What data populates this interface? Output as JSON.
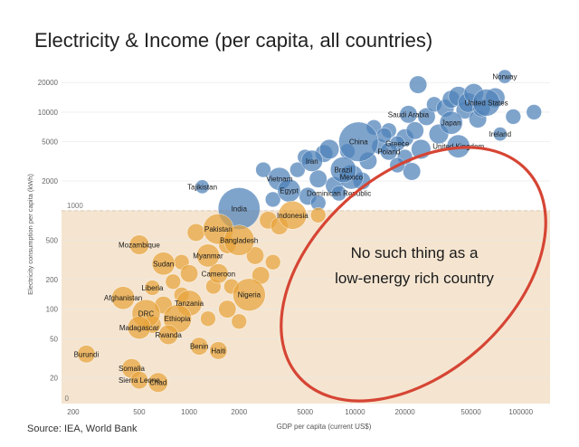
{
  "title": "Electricity & Income (per capita, all countries)",
  "source": "Source: IEA, World Bank",
  "chart_data": {
    "type": "scatter",
    "title": "Electricity & Income (per capita, all countries)",
    "xlabel": "GDP per capita (current US$)",
    "ylabel": "Electricity consumption per capita (kWh)",
    "xscale": "log",
    "yscale": "log",
    "xlim": [
      170,
      150000
    ],
    "ylim": [
      11,
      30000
    ],
    "xticks": [
      200,
      500,
      1000,
      2000,
      5000,
      10000,
      20000,
      50000,
      100000
    ],
    "xtick_labels": [
      "200",
      "500",
      "1000",
      "2000",
      "5000",
      "10000",
      "20000",
      "50000",
      "100000"
    ],
    "yticks": [
      20,
      50,
      100,
      200,
      500,
      1000,
      2000,
      5000,
      10000,
      20000
    ],
    "ytick_labels": [
      "20",
      "50",
      "100",
      "200",
      "500",
      "1000",
      "2000",
      "5000",
      "10000",
      "20000"
    ],
    "zero_label": "0",
    "threshold": {
      "y": 1000,
      "label": "1000",
      "color": "#f2dcc0"
    },
    "annotation": {
      "line1": "No such thing as a",
      "line2": "low-energy rich country",
      "ellipse_color": "#d64534"
    },
    "colors": {
      "high": "#4e81b8",
      "low": "#e7a43c"
    },
    "labeled_points": [
      {
        "name": "Norway",
        "x": 80000,
        "y": 23000,
        "size": 1.5,
        "group": "high"
      },
      {
        "name": "United States",
        "x": 62000,
        "y": 12500,
        "size": 9,
        "group": "high"
      },
      {
        "name": "Saudi Arabia",
        "x": 21000,
        "y": 9500,
        "size": 3,
        "group": "high"
      },
      {
        "name": "Japan",
        "x": 38000,
        "y": 7800,
        "size": 6,
        "group": "high"
      },
      {
        "name": "Ireland",
        "x": 75000,
        "y": 6000,
        "size": 1.5,
        "group": "high"
      },
      {
        "name": "China",
        "x": 10500,
        "y": 5000,
        "size": 22,
        "group": "high"
      },
      {
        "name": "Greece",
        "x": 18000,
        "y": 4800,
        "size": 2,
        "group": "high"
      },
      {
        "name": "Poland",
        "x": 16000,
        "y": 4000,
        "size": 3,
        "group": "high"
      },
      {
        "name": "United Kingdom",
        "x": 42000,
        "y": 4500,
        "size": 6,
        "group": "high"
      },
      {
        "name": "Mexico",
        "x": 9500,
        "y": 2200,
        "size": 7,
        "group": "high"
      },
      {
        "name": "Iran",
        "x": 5500,
        "y": 3200,
        "size": 5,
        "group": "high"
      },
      {
        "name": "Brazil",
        "x": 8500,
        "y": 2600,
        "size": 8,
        "group": "high"
      },
      {
        "name": "Vietnam",
        "x": 3500,
        "y": 2100,
        "size": 6,
        "group": "high"
      },
      {
        "name": "Egypt",
        "x": 4000,
        "y": 1600,
        "size": 6,
        "group": "high"
      },
      {
        "name": "Dominican Republic",
        "x": 8000,
        "y": 1500,
        "size": 2,
        "group": "high"
      },
      {
        "name": "Tajikistan",
        "x": 1200,
        "y": 1750,
        "size": 1.5,
        "group": "high"
      },
      {
        "name": "India",
        "x": 2000,
        "y": 1050,
        "size": 25,
        "group": "high"
      },
      {
        "name": "Indonesia",
        "x": 4200,
        "y": 900,
        "size": 10,
        "group": "low"
      },
      {
        "name": "Pakistan",
        "x": 1500,
        "y": 650,
        "size": 12,
        "group": "low"
      },
      {
        "name": "Bangladesh",
        "x": 2000,
        "y": 500,
        "size": 12,
        "group": "low"
      },
      {
        "name": "Mozambique",
        "x": 500,
        "y": 450,
        "size": 4,
        "group": "low"
      },
      {
        "name": "Myanmar",
        "x": 1300,
        "y": 350,
        "size": 6,
        "group": "low"
      },
      {
        "name": "Sudan",
        "x": 700,
        "y": 290,
        "size": 6,
        "group": "low"
      },
      {
        "name": "Cameroon",
        "x": 1500,
        "y": 230,
        "size": 4,
        "group": "low"
      },
      {
        "name": "Liberia",
        "x": 600,
        "y": 165,
        "size": 2,
        "group": "low"
      },
      {
        "name": "Afghanistan",
        "x": 400,
        "y": 130,
        "size": 6,
        "group": "low"
      },
      {
        "name": "Nigeria",
        "x": 2300,
        "y": 140,
        "size": 14,
        "group": "low"
      },
      {
        "name": "Tanzania",
        "x": 1000,
        "y": 115,
        "size": 8,
        "group": "low"
      },
      {
        "name": "DRC",
        "x": 550,
        "y": 90,
        "size": 10,
        "group": "low"
      },
      {
        "name": "Ethiopia",
        "x": 850,
        "y": 80,
        "size": 10,
        "group": "low"
      },
      {
        "name": "Madagascar",
        "x": 500,
        "y": 65,
        "size": 6,
        "group": "low"
      },
      {
        "name": "Rwanda",
        "x": 750,
        "y": 55,
        "size": 4,
        "group": "low"
      },
      {
        "name": "Benin",
        "x": 1150,
        "y": 42,
        "size": 3,
        "group": "low"
      },
      {
        "name": "Haiti",
        "x": 1500,
        "y": 38,
        "size": 3,
        "group": "low"
      },
      {
        "name": "Burundi",
        "x": 240,
        "y": 35,
        "size": 3,
        "group": "low"
      },
      {
        "name": "Somalia",
        "x": 450,
        "y": 25,
        "size": 4,
        "group": "low"
      },
      {
        "name": "Sierra Leone",
        "x": 500,
        "y": 19,
        "size": 3,
        "group": "low"
      },
      {
        "name": "Chad",
        "x": 650,
        "y": 18,
        "size": 4,
        "group": "low"
      }
    ],
    "other_points": [
      {
        "x": 5000,
        "y": 3500,
        "size": 2,
        "group": "high"
      },
      {
        "x": 6500,
        "y": 3800,
        "size": 3,
        "group": "high"
      },
      {
        "x": 7000,
        "y": 4200,
        "size": 4,
        "group": "high"
      },
      {
        "x": 12000,
        "y": 3200,
        "size": 3,
        "group": "high"
      },
      {
        "x": 14000,
        "y": 4500,
        "size": 2,
        "group": "high"
      },
      {
        "x": 13000,
        "y": 7000,
        "size": 2,
        "group": "high"
      },
      {
        "x": 16000,
        "y": 6500,
        "size": 2,
        "group": "high"
      },
      {
        "x": 20000,
        "y": 5500,
        "size": 3,
        "group": "high"
      },
      {
        "x": 23000,
        "y": 6500,
        "size": 3,
        "group": "high"
      },
      {
        "x": 25000,
        "y": 4200,
        "size": 4,
        "group": "high"
      },
      {
        "x": 27000,
        "y": 9000,
        "size": 3,
        "group": "high"
      },
      {
        "x": 30000,
        "y": 12000,
        "size": 2,
        "group": "high"
      },
      {
        "x": 32000,
        "y": 6000,
        "size": 4,
        "group": "high"
      },
      {
        "x": 35000,
        "y": 11000,
        "size": 3,
        "group": "high"
      },
      {
        "x": 38000,
        "y": 13500,
        "size": 3,
        "group": "high"
      },
      {
        "x": 42000,
        "y": 14500,
        "size": 4,
        "group": "high"
      },
      {
        "x": 46000,
        "y": 10500,
        "size": 3,
        "group": "high"
      },
      {
        "x": 48000,
        "y": 12500,
        "size": 4,
        "group": "high"
      },
      {
        "x": 52000,
        "y": 15500,
        "size": 4,
        "group": "high"
      },
      {
        "x": 55000,
        "y": 8500,
        "size": 3,
        "group": "high"
      },
      {
        "x": 58000,
        "y": 11000,
        "size": 3,
        "group": "high"
      },
      {
        "x": 70000,
        "y": 14000,
        "size": 4,
        "group": "high"
      },
      {
        "x": 90000,
        "y": 9000,
        "size": 2,
        "group": "high"
      },
      {
        "x": 120000,
        "y": 10000,
        "size": 2,
        "group": "high"
      },
      {
        "x": 20000,
        "y": 3500,
        "size": 2,
        "group": "high"
      },
      {
        "x": 22000,
        "y": 2500,
        "size": 3,
        "group": "high"
      },
      {
        "x": 18000,
        "y": 2900,
        "size": 2,
        "group": "high"
      },
      {
        "x": 11000,
        "y": 2000,
        "size": 3,
        "group": "high"
      },
      {
        "x": 7500,
        "y": 1800,
        "size": 3,
        "group": "high"
      },
      {
        "x": 6000,
        "y": 2100,
        "size": 3,
        "group": "high"
      },
      {
        "x": 4500,
        "y": 2600,
        "size": 2,
        "group": "high"
      },
      {
        "x": 5200,
        "y": 1400,
        "size": 3,
        "group": "high"
      },
      {
        "x": 6000,
        "y": 1200,
        "size": 2,
        "group": "high"
      },
      {
        "x": 3200,
        "y": 1300,
        "size": 2,
        "group": "high"
      },
      {
        "x": 2800,
        "y": 2600,
        "size": 2,
        "group": "high"
      },
      {
        "x": 15000,
        "y": 5800,
        "size": 2,
        "group": "high"
      },
      {
        "x": 9000,
        "y": 4000,
        "size": 2,
        "group": "high"
      },
      {
        "x": 24000,
        "y": 19000,
        "size": 3,
        "group": "high"
      },
      {
        "x": 3000,
        "y": 800,
        "size": 3,
        "group": "low"
      },
      {
        "x": 3500,
        "y": 700,
        "size": 3,
        "group": "low"
      },
      {
        "x": 6000,
        "y": 900,
        "size": 2,
        "group": "low"
      },
      {
        "x": 2500,
        "y": 350,
        "size": 3,
        "group": "low"
      },
      {
        "x": 3200,
        "y": 300,
        "size": 2,
        "group": "low"
      },
      {
        "x": 1700,
        "y": 450,
        "size": 3,
        "group": "low"
      },
      {
        "x": 1100,
        "y": 600,
        "size": 3,
        "group": "low"
      },
      {
        "x": 900,
        "y": 300,
        "size": 2,
        "group": "low"
      },
      {
        "x": 1000,
        "y": 230,
        "size": 3,
        "group": "low"
      },
      {
        "x": 1800,
        "y": 170,
        "size": 2,
        "group": "low"
      },
      {
        "x": 1700,
        "y": 100,
        "size": 3,
        "group": "low"
      },
      {
        "x": 1300,
        "y": 80,
        "size": 2,
        "group": "low"
      },
      {
        "x": 700,
        "y": 110,
        "size": 3,
        "group": "low"
      },
      {
        "x": 800,
        "y": 190,
        "size": 2,
        "group": "low"
      },
      {
        "x": 600,
        "y": 70,
        "size": 3,
        "group": "low"
      },
      {
        "x": 2000,
        "y": 75,
        "size": 2,
        "group": "low"
      },
      {
        "x": 2700,
        "y": 220,
        "size": 3,
        "group": "low"
      },
      {
        "x": 1400,
        "y": 170,
        "size": 2,
        "group": "low"
      },
      {
        "x": 900,
        "y": 140,
        "size": 2,
        "group": "low"
      }
    ]
  }
}
